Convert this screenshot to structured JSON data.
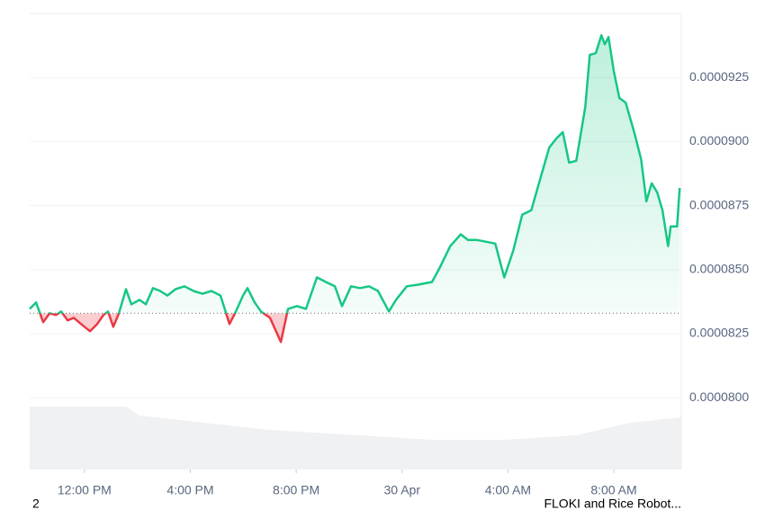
{
  "chart_data": {
    "type": "line",
    "x": [
      9.93,
      10.17,
      10.44,
      10.68,
      10.92,
      11.12,
      11.36,
      11.6,
      11.87,
      12.21,
      12.48,
      12.72,
      12.89,
      13.09,
      13.3,
      13.57,
      13.77,
      14.08,
      14.32,
      14.59,
      14.86,
      15.13,
      15.44,
      15.78,
      16.12,
      16.46,
      16.8,
      17.14,
      17.48,
      17.72,
      17.99,
      18.16,
      18.43,
      18.67,
      19.01,
      19.42,
      19.69,
      20.03,
      20.37,
      20.78,
      21.12,
      21.46,
      21.73,
      22.07,
      22.41,
      22.75,
      23.09,
      23.5,
      23.77,
      24.18,
      24.62,
      25.13,
      25.41,
      25.82,
      26.22,
      26.49,
      26.83,
      27.18,
      27.52,
      27.86,
      28.2,
      28.54,
      28.88,
      29.22,
      29.56,
      29.83,
      30.07,
      30.31,
      30.58,
      30.92,
      31.09,
      31.32,
      31.53,
      31.66,
      31.8,
      32.0,
      32.21,
      32.45,
      32.79,
      33.03,
      33.23,
      33.43,
      33.64,
      33.84,
      34.05,
      34.15,
      34.39,
      34.49
    ],
    "series": [
      {
        "color": "#16c784",
        "values": [
          8.347e-05,
          8.372e-05,
          8.295e-05,
          8.33e-05,
          8.323e-05,
          8.337e-05,
          8.302e-05,
          8.312e-05,
          8.288e-05,
          8.26e-05,
          8.288e-05,
          8.323e-05,
          8.337e-05,
          8.277e-05,
          8.33e-05,
          8.424e-05,
          8.365e-05,
          8.382e-05,
          8.365e-05,
          8.428e-05,
          8.417e-05,
          8.399e-05,
          8.424e-05,
          8.435e-05,
          8.417e-05,
          8.406e-05,
          8.417e-05,
          8.399e-05,
          8.288e-05,
          8.337e-05,
          8.399e-05,
          8.428e-05,
          8.372e-05,
          8.337e-05,
          8.312e-05,
          8.218e-05,
          8.347e-05,
          8.358e-05,
          8.347e-05,
          8.47e-05,
          8.452e-05,
          8.435e-05,
          8.358e-05,
          8.435e-05,
          8.428e-05,
          8.435e-05,
          8.417e-05,
          8.337e-05,
          8.382e-05,
          8.435e-05,
          8.442e-05,
          8.452e-05,
          8.505e-05,
          8.592e-05,
          8.638e-05,
          8.616e-05,
          8.616e-05,
          8.609e-05,
          8.602e-05,
          8.47e-05,
          8.575e-05,
          8.715e-05,
          8.732e-05,
          8.855e-05,
          8.977e-05,
          9.012e-05,
          9.037e-05,
          8.918e-05,
          8.925e-05,
          9.135e-05,
          9.338e-05,
          9.345e-05,
          9.415e-05,
          9.38e-05,
          9.408e-05,
          9.275e-05,
          9.17e-05,
          9.152e-05,
          9.03e-05,
          8.932e-05,
          8.767e-05,
          8.837e-05,
          8.802e-05,
          8.732e-05,
          8.592e-05,
          8.669e-05,
          8.669e-05,
          8.819e-05
        ]
      }
    ],
    "down_color": "#ea3943",
    "baseline": 8.33e-05,
    "xlim": [
      9.93,
      34.55
    ],
    "xticks": [
      {
        "value": 12,
        "label": "12:00 PM"
      },
      {
        "value": 16,
        "label": "4:00 PM"
      },
      {
        "value": 20,
        "label": "8:00 PM"
      },
      {
        "value": 24,
        "label": "30 Apr"
      },
      {
        "value": 28,
        "label": "4:00 AM"
      },
      {
        "value": 32,
        "label": "8:00 AM"
      }
    ],
    "ylim": [
      7.72e-05,
      9.5e-05
    ],
    "yticks": [
      {
        "value": 8e-05,
        "label": "0.0000800"
      },
      {
        "value": 8.25e-05,
        "label": "0.0000825"
      },
      {
        "value": 8.5e-05,
        "label": "0.0000850"
      },
      {
        "value": 8.75e-05,
        "label": "0.0000875"
      },
      {
        "value": 9e-05,
        "label": "0.0000900"
      },
      {
        "value": 9.25e-05,
        "label": "0.0000925"
      }
    ],
    "grid": true
  },
  "footer": {
    "left": "2",
    "right": "FLOKI and Rice Robot..."
  }
}
